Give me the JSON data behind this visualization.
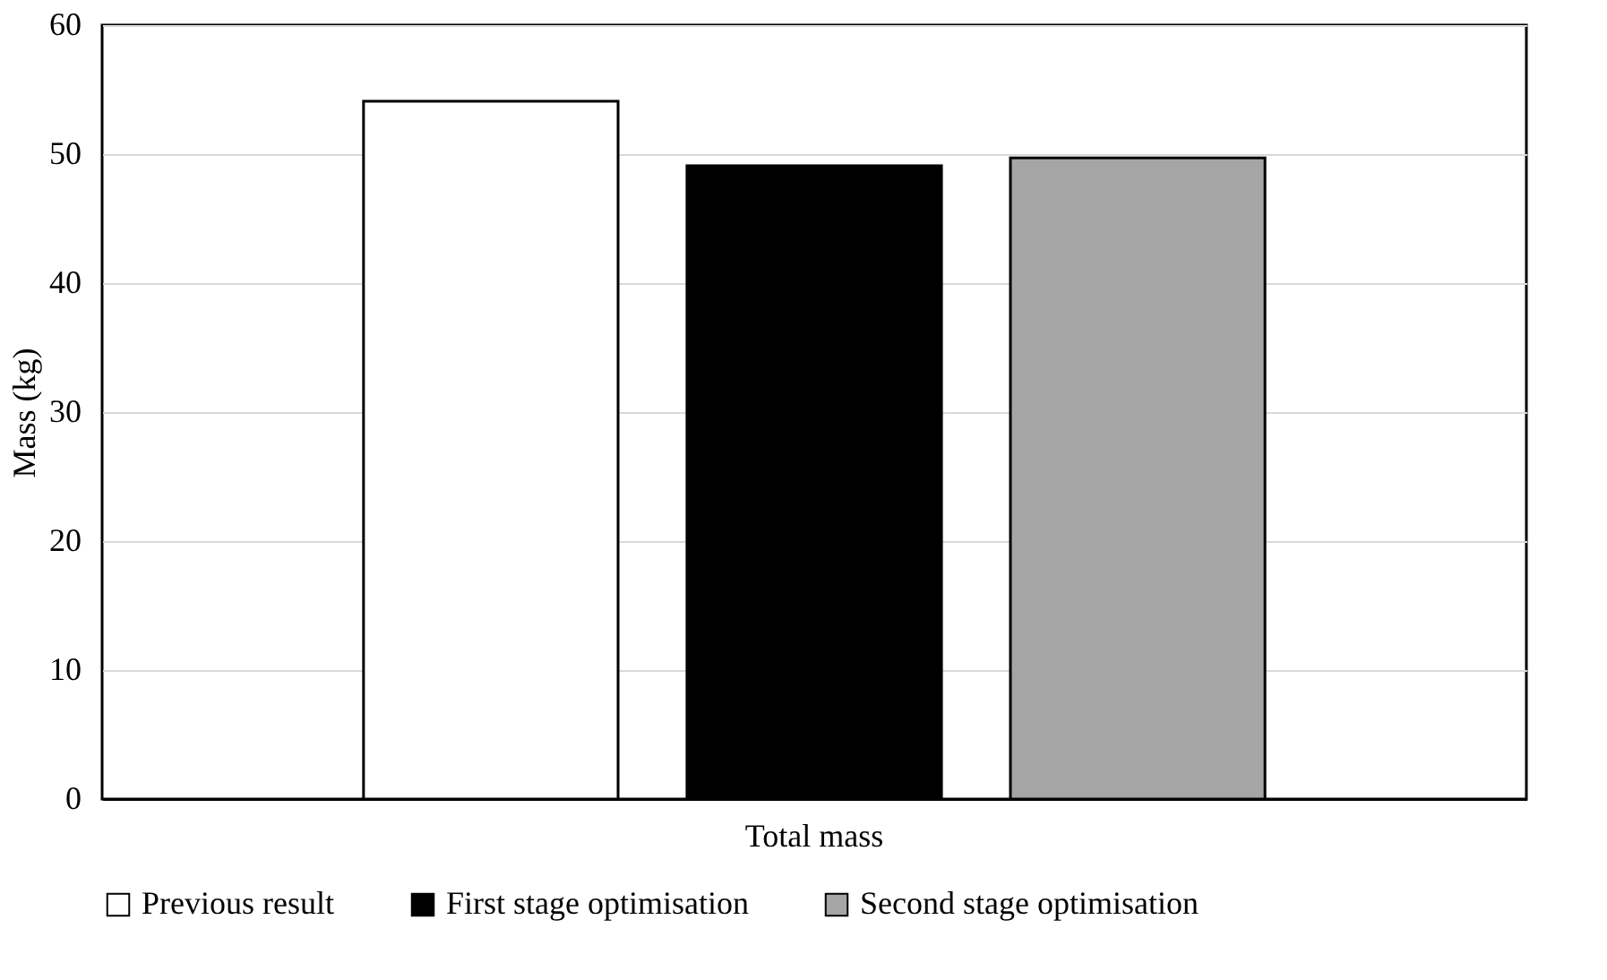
{
  "chart_data": {
    "type": "bar",
    "ylabel": "Mass (kg)",
    "categories": [
      "Total mass"
    ],
    "series": [
      {
        "name": "Previous result",
        "color": "#ffffff",
        "values": [
          54.1
        ]
      },
      {
        "name": "First stage optimisation",
        "color": "#000000",
        "values": [
          49.1
        ]
      },
      {
        "name": "Second stage optimisation",
        "color": "#a5a5a5",
        "values": [
          49.7
        ]
      }
    ],
    "ylim": [
      0,
      60
    ],
    "yticks": [
      0,
      10,
      20,
      30,
      40,
      50,
      60
    ],
    "grid": "y",
    "legend": "bottom"
  }
}
